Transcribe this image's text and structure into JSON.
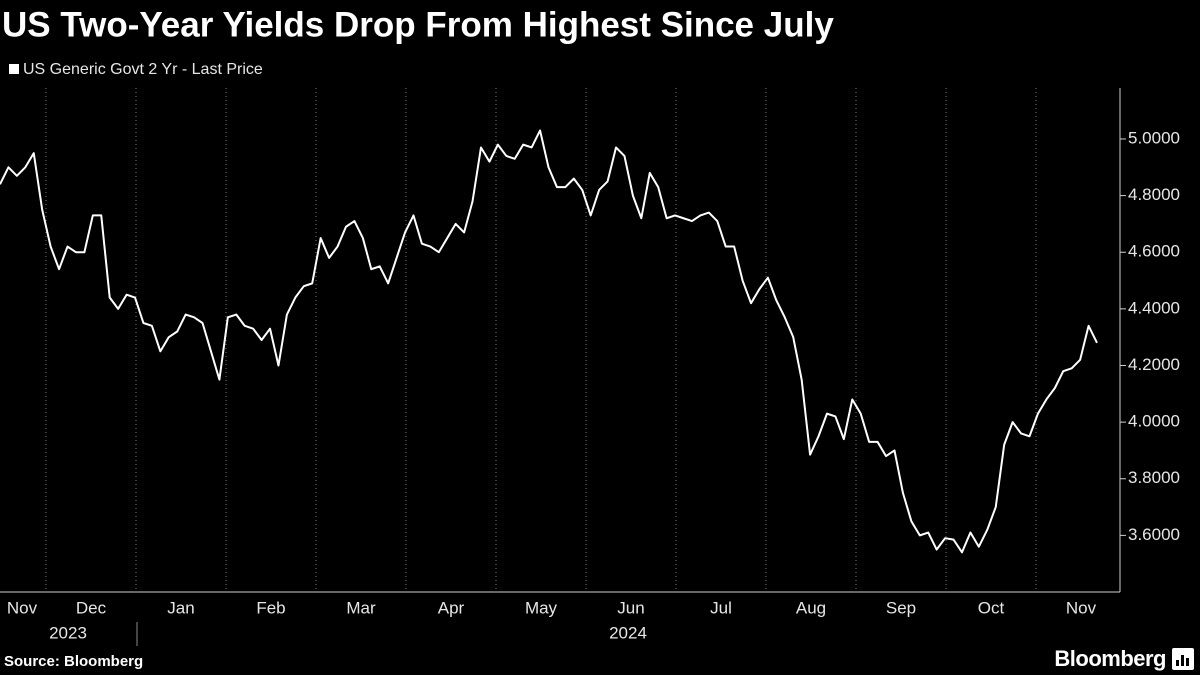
{
  "chart_data": {
    "type": "line",
    "title": "US Two-Year Yields Drop From Highest Since July",
    "series": [
      {
        "name": "US Generic Govt 2 Yr - Last Price",
        "color": "#ffffff",
        "values": [
          4.84,
          4.9,
          4.87,
          4.9,
          4.95,
          4.75,
          4.62,
          4.54,
          4.62,
          4.6,
          4.6,
          4.73,
          4.73,
          4.44,
          4.4,
          4.45,
          4.44,
          4.35,
          4.34,
          4.25,
          4.3,
          4.32,
          4.38,
          4.37,
          4.35,
          4.25,
          4.15,
          4.37,
          4.38,
          4.34,
          4.33,
          4.29,
          4.33,
          4.2,
          4.38,
          4.44,
          4.48,
          4.49,
          4.65,
          4.58,
          4.62,
          4.69,
          4.71,
          4.65,
          4.54,
          4.55,
          4.49,
          4.58,
          4.67,
          4.73,
          4.63,
          4.62,
          4.6,
          4.65,
          4.7,
          4.67,
          4.78,
          4.97,
          4.92,
          4.98,
          4.94,
          4.93,
          4.98,
          4.97,
          5.03,
          4.9,
          4.83,
          4.83,
          4.86,
          4.82,
          4.73,
          4.82,
          4.85,
          4.97,
          4.94,
          4.8,
          4.72,
          4.88,
          4.83,
          4.72,
          4.73,
          4.72,
          4.71,
          4.73,
          4.74,
          4.71,
          4.62,
          4.62,
          4.5,
          4.42,
          4.47,
          4.51,
          4.43,
          4.37,
          4.3,
          4.15,
          3.885,
          3.95,
          4.03,
          4.02,
          3.94,
          4.08,
          4.03,
          3.93,
          3.93,
          3.88,
          3.9,
          3.75,
          3.65,
          3.6,
          3.61,
          3.55,
          3.59,
          3.585,
          3.54,
          3.61,
          3.56,
          3.62,
          3.7,
          3.92,
          4.0,
          3.96,
          3.95,
          4.03,
          4.08,
          4.12,
          4.18,
          4.19,
          4.22,
          4.34,
          4.28
        ]
      }
    ],
    "months": [
      "Nov",
      "Dec",
      "Jan",
      "Feb",
      "Mar",
      "Apr",
      "May",
      "Jun",
      "Jul",
      "Aug",
      "Sep",
      "Oct",
      "Nov"
    ],
    "years": [
      "2023",
      "2024"
    ],
    "ylim": [
      3.4,
      5.18
    ],
    "yticks": [
      {
        "value": 3.6,
        "label": "3.6000"
      },
      {
        "value": 3.8,
        "label": "3.8000"
      },
      {
        "value": 4.0,
        "label": "4.0000"
      },
      {
        "value": 4.2,
        "label": "4.2000"
      },
      {
        "value": 4.4,
        "label": "4.4000"
      },
      {
        "value": 4.6,
        "label": "4.6000"
      },
      {
        "value": 4.8,
        "label": "4.8000"
      },
      {
        "value": 5.0,
        "label": "5.0000"
      }
    ],
    "grid": true,
    "source": "Source: Bloomberg",
    "logo": "Bloomberg"
  }
}
